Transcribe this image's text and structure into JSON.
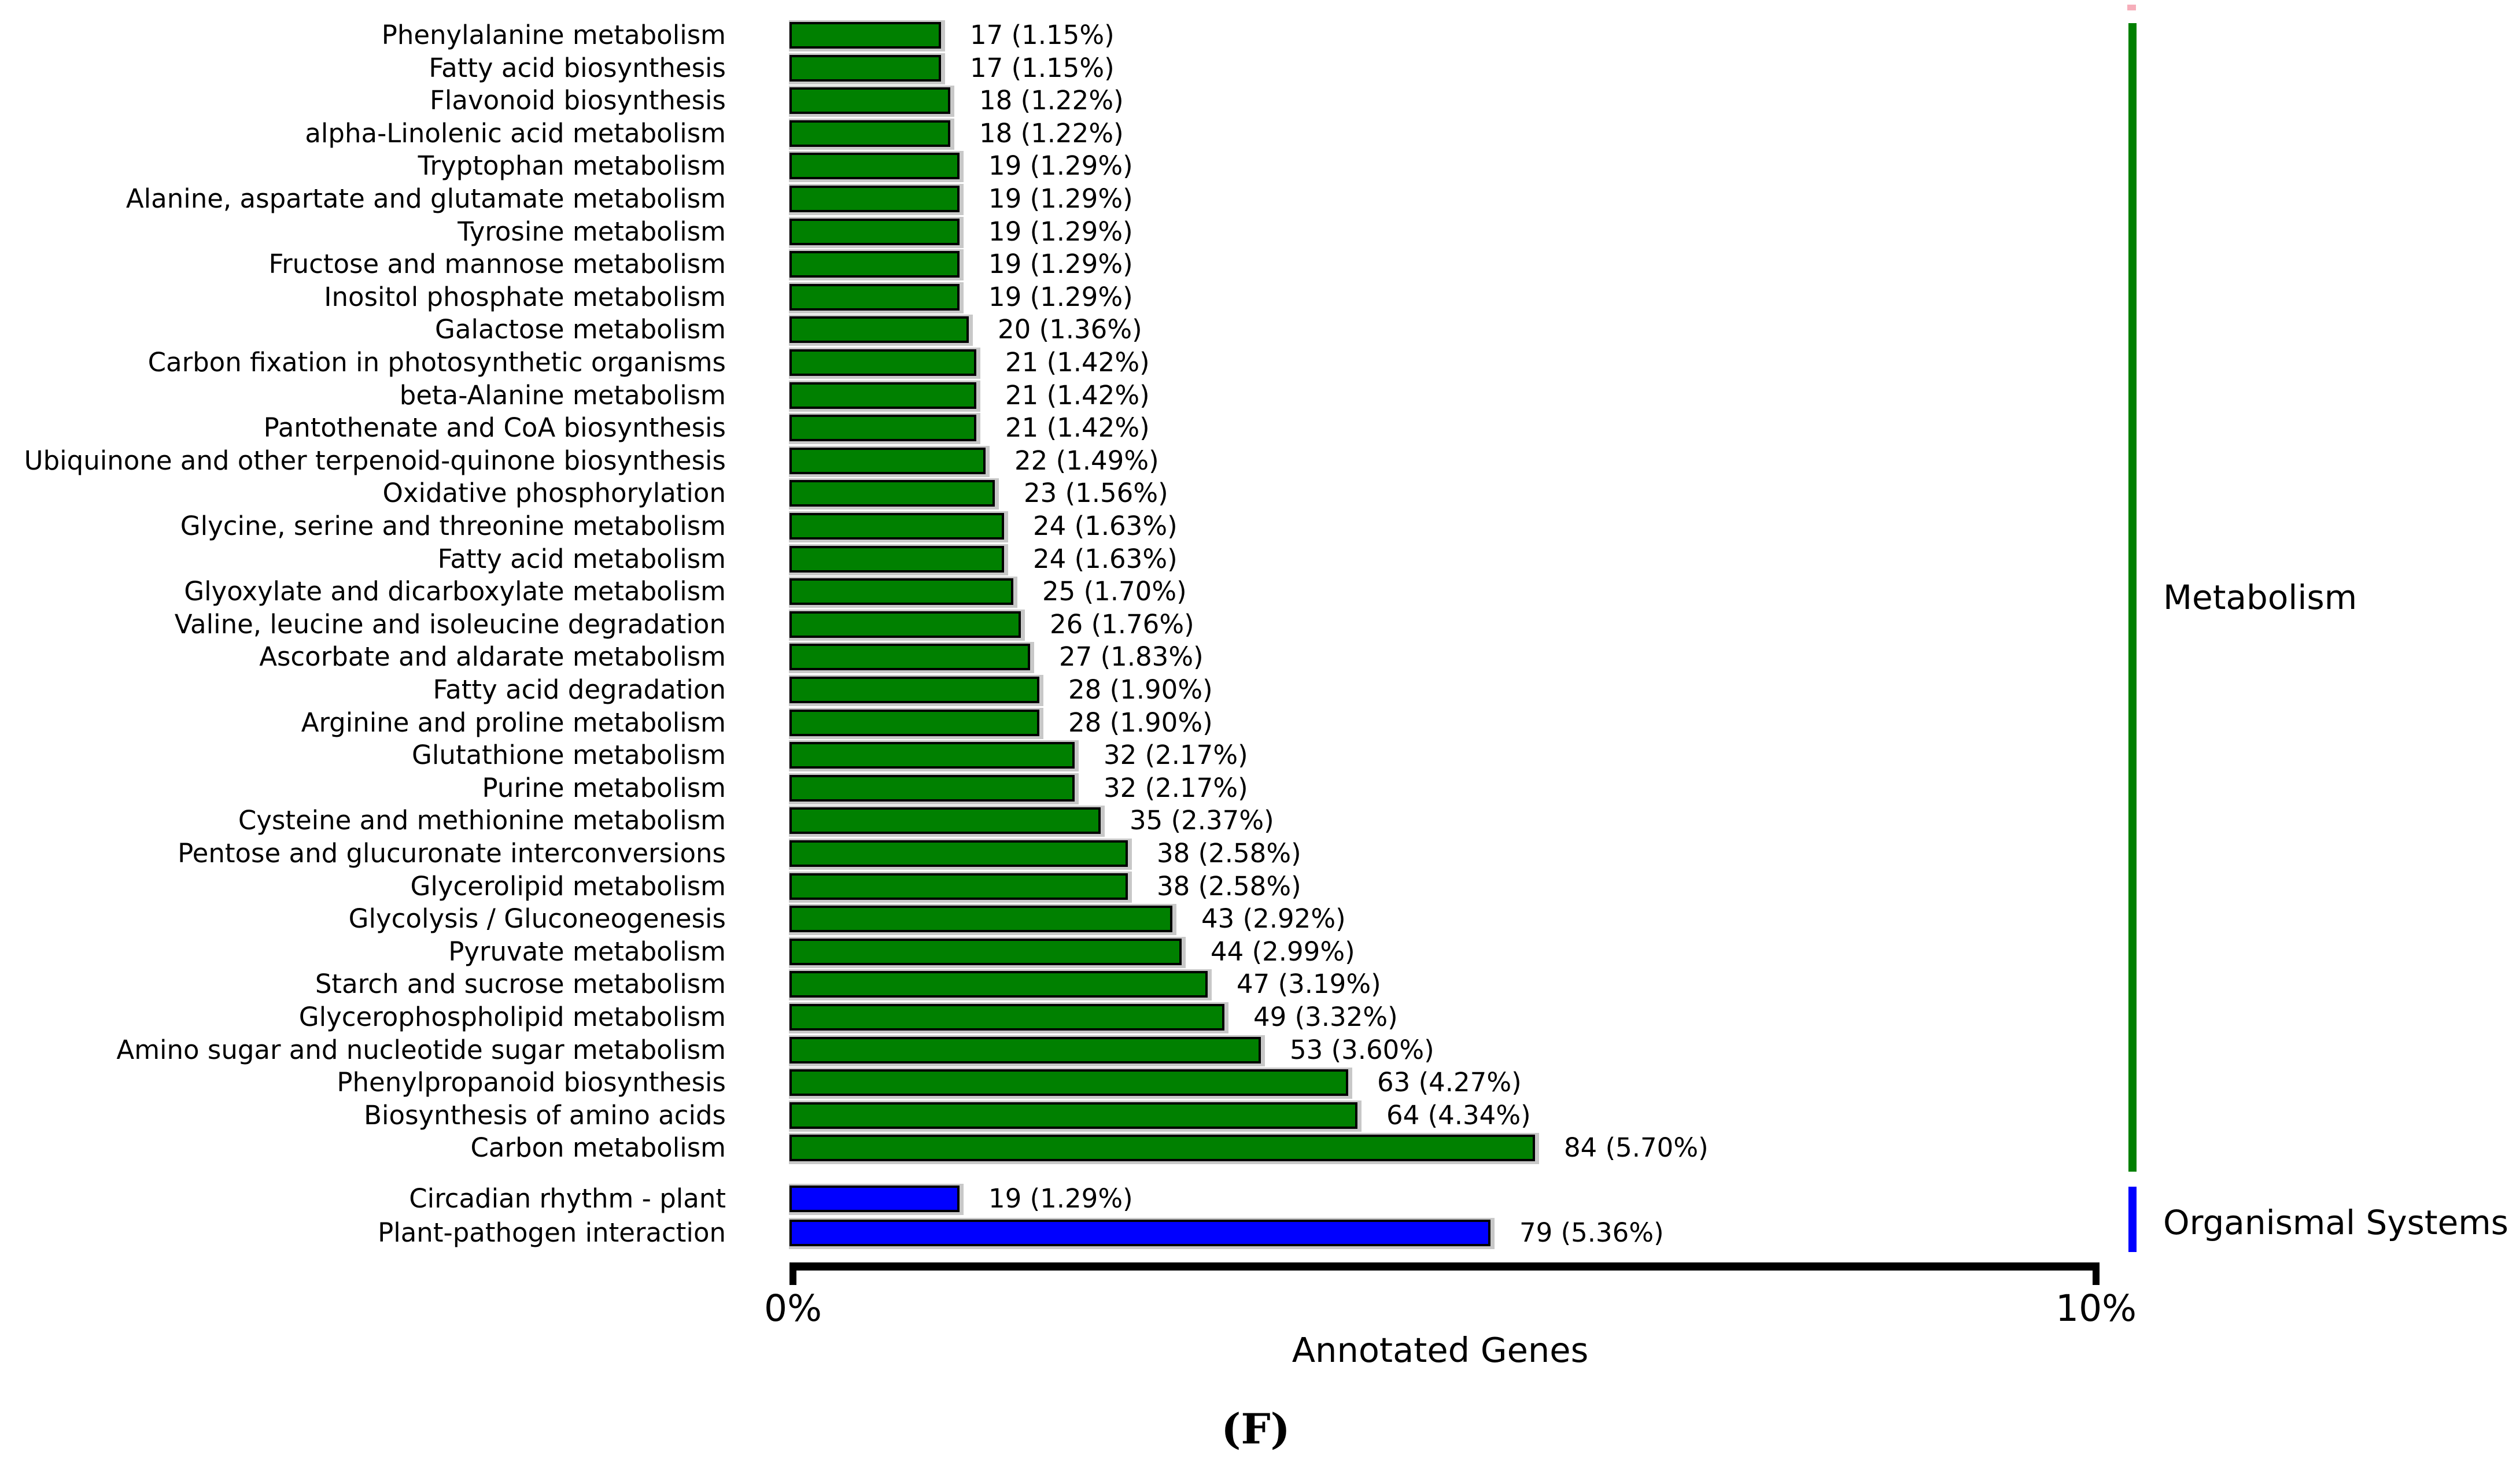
{
  "chart_data": {
    "type": "bar",
    "orientation": "horizontal",
    "title": "",
    "xlabel": "Annotated Genes",
    "ylabel": "",
    "caption": "(F)",
    "x_axis": {
      "tick_labels": [
        "0%",
        "10%"
      ],
      "range_percent": [
        0,
        10
      ],
      "grid": false
    },
    "legend_position": "right",
    "groups": [
      {
        "name": "Metabolism",
        "color": "#008000",
        "items": [
          {
            "label": "Phenylalanine metabolism",
            "count": 17,
            "percent": 1.15,
            "value_text": "17 (1.15%)"
          },
          {
            "label": "Fatty acid biosynthesis",
            "count": 17,
            "percent": 1.15,
            "value_text": "17 (1.15%)"
          },
          {
            "label": "Flavonoid biosynthesis",
            "count": 18,
            "percent": 1.22,
            "value_text": "18 (1.22%)"
          },
          {
            "label": "alpha-Linolenic acid metabolism",
            "count": 18,
            "percent": 1.22,
            "value_text": "18 (1.22%)"
          },
          {
            "label": "Tryptophan metabolism",
            "count": 19,
            "percent": 1.29,
            "value_text": "19 (1.29%)"
          },
          {
            "label": "Alanine, aspartate and glutamate metabolism",
            "count": 19,
            "percent": 1.29,
            "value_text": "19 (1.29%)"
          },
          {
            "label": "Tyrosine metabolism",
            "count": 19,
            "percent": 1.29,
            "value_text": "19 (1.29%)"
          },
          {
            "label": "Fructose and mannose metabolism",
            "count": 19,
            "percent": 1.29,
            "value_text": "19 (1.29%)"
          },
          {
            "label": "Inositol phosphate metabolism",
            "count": 19,
            "percent": 1.29,
            "value_text": "19 (1.29%)"
          },
          {
            "label": "Galactose metabolism",
            "count": 20,
            "percent": 1.36,
            "value_text": "20 (1.36%)"
          },
          {
            "label": "Carbon fixation in photosynthetic organisms",
            "count": 21,
            "percent": 1.42,
            "value_text": "21 (1.42%)"
          },
          {
            "label": "beta-Alanine metabolism",
            "count": 21,
            "percent": 1.42,
            "value_text": "21 (1.42%)"
          },
          {
            "label": "Pantothenate and CoA biosynthesis",
            "count": 21,
            "percent": 1.42,
            "value_text": "21 (1.42%)"
          },
          {
            "label": "Ubiquinone and other terpenoid-quinone biosynthesis",
            "count": 22,
            "percent": 1.49,
            "value_text": "22 (1.49%)"
          },
          {
            "label": "Oxidative phosphorylation",
            "count": 23,
            "percent": 1.56,
            "value_text": "23 (1.56%)"
          },
          {
            "label": "Glycine, serine and threonine metabolism",
            "count": 24,
            "percent": 1.63,
            "value_text": "24 (1.63%)"
          },
          {
            "label": "Fatty acid metabolism",
            "count": 24,
            "percent": 1.63,
            "value_text": "24 (1.63%)"
          },
          {
            "label": "Glyoxylate and dicarboxylate metabolism",
            "count": 25,
            "percent": 1.7,
            "value_text": "25 (1.70%)"
          },
          {
            "label": "Valine, leucine and isoleucine degradation",
            "count": 26,
            "percent": 1.76,
            "value_text": "26 (1.76%)"
          },
          {
            "label": "Ascorbate and aldarate metabolism",
            "count": 27,
            "percent": 1.83,
            "value_text": "27 (1.83%)"
          },
          {
            "label": "Fatty acid degradation",
            "count": 28,
            "percent": 1.9,
            "value_text": "28 (1.90%)"
          },
          {
            "label": "Arginine and proline metabolism",
            "count": 28,
            "percent": 1.9,
            "value_text": "28 (1.90%)"
          },
          {
            "label": "Glutathione metabolism",
            "count": 32,
            "percent": 2.17,
            "value_text": "32 (2.17%)"
          },
          {
            "label": "Purine metabolism",
            "count": 32,
            "percent": 2.17,
            "value_text": "32 (2.17%)"
          },
          {
            "label": "Cysteine and methionine metabolism",
            "count": 35,
            "percent": 2.37,
            "value_text": "35 (2.37%)"
          },
          {
            "label": "Pentose and glucuronate interconversions",
            "count": 38,
            "percent": 2.58,
            "value_text": "38 (2.58%)"
          },
          {
            "label": "Glycerolipid metabolism",
            "count": 38,
            "percent": 2.58,
            "value_text": "38 (2.58%)"
          },
          {
            "label": "Glycolysis / Gluconeogenesis",
            "count": 43,
            "percent": 2.92,
            "value_text": "43 (2.92%)"
          },
          {
            "label": "Pyruvate metabolism",
            "count": 44,
            "percent": 2.99,
            "value_text": "44 (2.99%)"
          },
          {
            "label": "Starch and sucrose metabolism",
            "count": 47,
            "percent": 3.19,
            "value_text": "47 (3.19%)"
          },
          {
            "label": "Glycerophospholipid metabolism",
            "count": 49,
            "percent": 3.32,
            "value_text": "49 (3.32%)"
          },
          {
            "label": "Amino sugar and nucleotide sugar metabolism",
            "count": 53,
            "percent": 3.6,
            "value_text": "53 (3.60%)"
          },
          {
            "label": "Phenylpropanoid biosynthesis",
            "count": 63,
            "percent": 4.27,
            "value_text": "63 (4.27%)"
          },
          {
            "label": "Biosynthesis of amino acids",
            "count": 64,
            "percent": 4.34,
            "value_text": "64 (4.34%)"
          },
          {
            "label": "Carbon metabolism",
            "count": 84,
            "percent": 5.7,
            "value_text": "84 (5.70%)"
          }
        ]
      },
      {
        "name": "Organismal Systems",
        "color": "#0000ff",
        "items": [
          {
            "label": "Circadian rhythm - plant",
            "count": 19,
            "percent": 1.29,
            "value_text": "19 (1.29%)"
          },
          {
            "label": "Plant-pathogen interaction",
            "count": 79,
            "percent": 5.36,
            "value_text": "79 (5.36%)"
          }
        ]
      }
    ]
  },
  "colors": {
    "metabolism_green": "#008000",
    "organismal_blue": "#0000ff",
    "bar_shadow_grey": "#c8c8c8",
    "bar_border_black": "#000000",
    "cropped_category_pink": "#f6aeba"
  }
}
